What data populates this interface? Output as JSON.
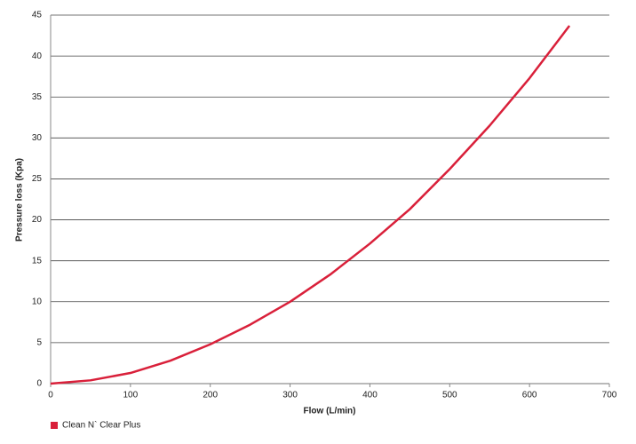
{
  "chart_data": {
    "type": "line",
    "x_label": "Flow (L/min)",
    "y_label": "Pressure loss (Kpa)",
    "x": [
      0,
      50,
      100,
      150,
      200,
      250,
      300,
      350,
      400,
      450,
      500,
      550,
      600,
      650
    ],
    "series": [
      {
        "name": "Clean N` Clear Plus",
        "color": "#d9203a",
        "values": [
          0,
          0.4,
          1.3,
          2.8,
          4.8,
          7.2,
          10,
          13.3,
          17.1,
          21.3,
          26.2,
          31.5,
          37.3,
          43.7
        ]
      }
    ],
    "xlim": [
      0,
      700
    ],
    "xticks": [
      0,
      100,
      200,
      300,
      400,
      500,
      600,
      700
    ],
    "ylim": [
      0,
      45
    ],
    "yticks": [
      0,
      5,
      10,
      15,
      20,
      25,
      30,
      35,
      40,
      45
    ],
    "grid": true,
    "legend": "bottom-left"
  }
}
